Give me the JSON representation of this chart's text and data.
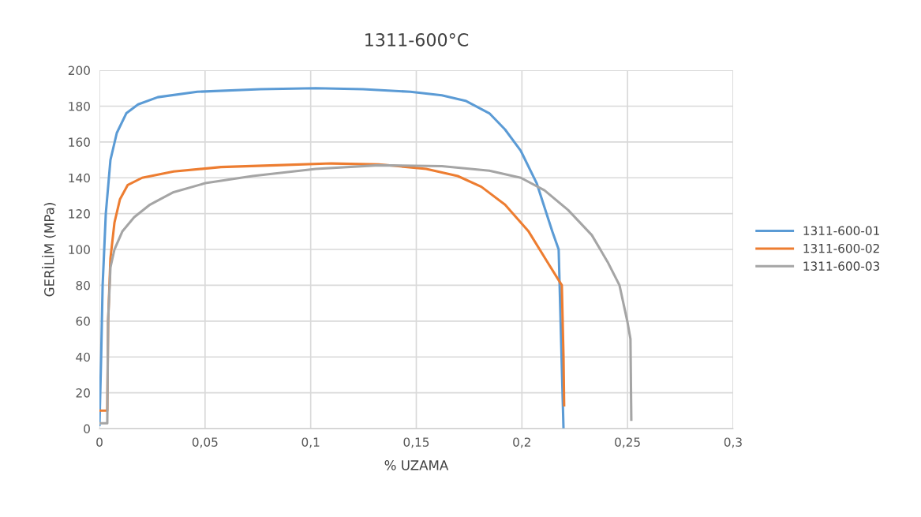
{
  "chart_data": {
    "type": "line",
    "title": "1311-600°C",
    "xlabel": "% UZAMA",
    "ylabel": "GERİLİM (MPa)",
    "xlim": [
      0,
      0.3
    ],
    "xticks": [
      {
        "value": 0,
        "label": "0"
      },
      {
        "value": 0.05,
        "label": "0,05"
      },
      {
        "value": 0.1,
        "label": "0,1"
      },
      {
        "value": 0.15,
        "label": "0,15"
      },
      {
        "value": 0.2,
        "label": "0,2"
      },
      {
        "value": 0.25,
        "label": "0,25"
      },
      {
        "value": 0.3,
        "label": "0,3"
      }
    ],
    "ylim": [
      0,
      200
    ],
    "yticks": [
      0,
      20,
      40,
      60,
      80,
      100,
      120,
      140,
      160,
      180,
      200
    ],
    "grid": true,
    "legend": "right",
    "marker": "none",
    "line_style": "solid",
    "series": [
      {
        "name": "1311-600-01",
        "color": "#5b9bd5",
        "x": [
          0,
          0.0008,
          0.0015,
          0.003,
          0.0052,
          0.0082,
          0.0127,
          0.0183,
          0.0276,
          0.0463,
          0.0762,
          0.1024,
          0.1248,
          0.1472,
          0.1621,
          0.1733,
          0.1846,
          0.192,
          0.1995,
          0.207,
          0.2144,
          0.2174,
          0.2197
        ],
        "values": [
          2,
          40,
          80,
          120,
          150,
          165,
          176,
          181,
          185,
          188,
          189.5,
          190,
          189.5,
          188,
          186,
          183,
          176,
          167,
          155,
          137,
          110,
          100,
          0
        ]
      },
      {
        "name": "1311-600-02",
        "color": "#ed7d31",
        "x": [
          0,
          0.0037,
          0.0041,
          0.0052,
          0.0071,
          0.0097,
          0.0134,
          0.0202,
          0.0351,
          0.0575,
          0.0837,
          0.1098,
          0.1322,
          0.1547,
          0.1696,
          0.1808,
          0.192,
          0.2032,
          0.2126,
          0.2189,
          0.2197,
          0.22
        ],
        "values": [
          10,
          10,
          60,
          95,
          115,
          128,
          136,
          140,
          143.5,
          146,
          147,
          148,
          147.5,
          145,
          141,
          135,
          125,
          110,
          92,
          80,
          40,
          13
        ]
      },
      {
        "name": "1311-600-03",
        "color": "#a5a5a5",
        "x": [
          0,
          0.0037,
          0.0041,
          0.0052,
          0.0071,
          0.0108,
          0.0164,
          0.0239,
          0.0351,
          0.0501,
          0.0725,
          0.1024,
          0.1322,
          0.1621,
          0.1846,
          0.1995,
          0.2107,
          0.2219,
          0.2331,
          0.2406,
          0.2462,
          0.2499,
          0.2514,
          0.2518
        ],
        "values": [
          3,
          3,
          60,
          90,
          100,
          110,
          118,
          125,
          132,
          137,
          141,
          145,
          147,
          146.5,
          144,
          140,
          133,
          122,
          108,
          93,
          80,
          60,
          50,
          5
        ]
      }
    ]
  }
}
